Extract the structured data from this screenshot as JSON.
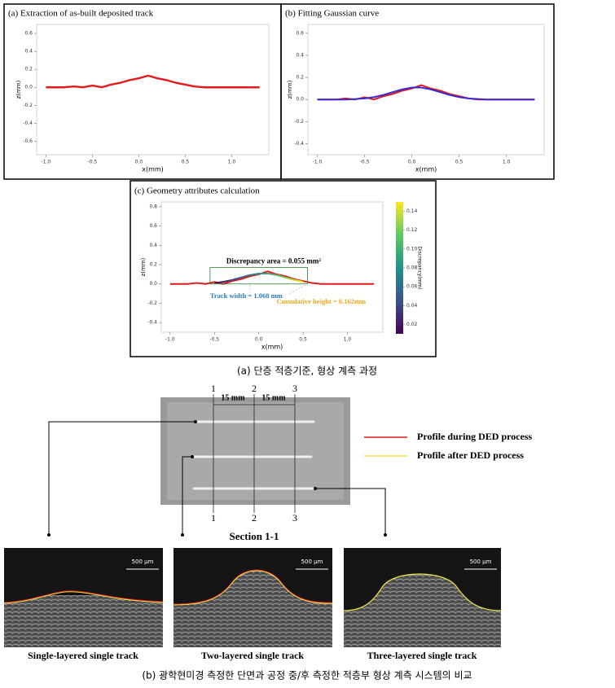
{
  "chart_data": [
    {
      "type": "line",
      "title": "(a) Extraction of as-built deposited track",
      "xlabel": "x(mm)",
      "ylabel": "z(mm)",
      "x": [
        -1.0,
        -0.9,
        -0.8,
        -0.7,
        -0.6,
        -0.5,
        -0.4,
        -0.3,
        -0.2,
        -0.1,
        0.0,
        0.1,
        0.2,
        0.3,
        0.4,
        0.5,
        0.6,
        0.7,
        0.8,
        0.9,
        1.0,
        1.1,
        1.2,
        1.3
      ],
      "series": [
        {
          "color": "#e31a1c",
          "values": [
            0,
            0,
            0,
            0.01,
            0,
            0.02,
            0,
            0.03,
            0.05,
            0.08,
            0.1,
            0.13,
            0.1,
            0.08,
            0.05,
            0.03,
            0.01,
            0,
            0,
            0,
            0,
            0,
            0,
            0
          ]
        }
      ],
      "xlim": [
        -1.1,
        1.4
      ],
      "ylim": [
        -0.75,
        0.7
      ],
      "xticks": [
        {
          "value": -1.0,
          "label": "-1.0"
        },
        -0.5,
        {
          "value": 0,
          "label": "0.0"
        },
        0.5,
        {
          "value": 1.0,
          "label": "1.0"
        }
      ],
      "yticks": [
        -0.6,
        -0.4,
        -0.2,
        {
          "value": 0,
          "label": "0.0"
        },
        0.2,
        0.4,
        0.6
      ]
    },
    {
      "type": "line",
      "title": "(b) Fitting Gaussian curve",
      "xlabel": "x(mm)",
      "ylabel": "z(mm)",
      "x": [
        -1.0,
        -0.9,
        -0.8,
        -0.7,
        -0.6,
        -0.5,
        -0.4,
        -0.3,
        -0.2,
        -0.1,
        0.0,
        0.1,
        0.2,
        0.3,
        0.4,
        0.5,
        0.6,
        0.7,
        0.8,
        0.9,
        1.0,
        1.1,
        1.2,
        1.3
      ],
      "series": [
        {
          "color": "#e31a1c",
          "values": [
            0,
            0,
            0,
            0.01,
            0,
            0.02,
            0,
            0.03,
            0.05,
            0.08,
            0.1,
            0.13,
            0.1,
            0.08,
            0.05,
            0.03,
            0.01,
            0,
            0,
            0,
            0,
            0,
            0,
            0
          ]
        },
        {
          "color": "#3a2ad0",
          "values": [
            0,
            0,
            0,
            0,
            0.004,
            0.01,
            0.022,
            0.041,
            0.067,
            0.092,
            0.108,
            0.108,
            0.092,
            0.067,
            0.041,
            0.022,
            0.01,
            0.004,
            0,
            0,
            0,
            0,
            0,
            0
          ]
        }
      ],
      "xlim": [
        -1.1,
        1.4
      ],
      "ylim": [
        -0.5,
        0.68
      ],
      "xticks": [
        {
          "value": -1.0,
          "label": "-1.0"
        },
        -0.5,
        {
          "value": 0,
          "label": "0.0"
        },
        0.5,
        {
          "value": 1.0,
          "label": "1.0"
        }
      ],
      "yticks": [
        -0.4,
        -0.2,
        {
          "value": 0,
          "label": "0.0"
        },
        0.2,
        0.4,
        0.6
      ]
    },
    {
      "type": "line",
      "title": "(c) Geometry attributes calculation",
      "xlabel": "x(mm)",
      "ylabel": "z(mm)",
      "x": [
        -1.0,
        -0.9,
        -0.8,
        -0.7,
        -0.6,
        -0.5,
        -0.4,
        -0.3,
        -0.2,
        -0.1,
        0.0,
        0.1,
        0.2,
        0.3,
        0.4,
        0.5,
        0.6,
        0.7,
        0.8,
        0.9,
        1.0,
        1.1,
        1.2,
        1.3
      ],
      "series": [
        {
          "color": "#e31a1c",
          "values": [
            0,
            0,
            0,
            0.01,
            0,
            0.02,
            0,
            0.03,
            0.05,
            0.08,
            0.1,
            0.13,
            0.1,
            0.08,
            0.05,
            0.03,
            0.01,
            0,
            0,
            0,
            0,
            0,
            0,
            0
          ]
        },
        {
          "colormap": "viridis",
          "values": [
            null,
            null,
            null,
            null,
            null,
            0.01,
            0.022,
            0.041,
            0.067,
            0.092,
            0.108,
            0.108,
            0.092,
            0.067,
            0.041,
            0.022,
            null,
            null,
            null,
            null,
            null,
            null,
            null,
            null
          ]
        }
      ],
      "xlim": [
        -1.1,
        1.4
      ],
      "ylim": [
        -0.5,
        0.85
      ],
      "xticks": [
        {
          "value": -1.0,
          "label": "-1.0"
        },
        -0.5,
        {
          "value": 0,
          "label": "0.0"
        },
        0.5,
        {
          "value": 1.0,
          "label": "1.0"
        }
      ],
      "yticks": [
        -0.4,
        -0.2,
        {
          "value": 0,
          "label": "0.0"
        },
        0.2,
        0.4,
        0.6,
        0.8
      ],
      "annotations": {
        "area": "Discrepancy  area = 0.055 mm²",
        "width": "Track width = 1.068 mm",
        "height": "Cumulative height = 0.162mm"
      },
      "colorbar": {
        "label": "Discrepancy(mm)",
        "colormap": "viridis",
        "lim": [
          0.01,
          0.15
        ],
        "ticks": [
          0.02,
          0.04,
          0.06,
          0.08,
          {
            "value": 0.1,
            "label": "0.10"
          },
          0.12,
          0.14
        ]
      }
    }
  ],
  "figure_a_caption": "(a) 단층 적층기준, 형상 계측 과정",
  "photo": {
    "top_labels": [
      "1",
      "2",
      "3"
    ],
    "spacing_labels": [
      "15 mm",
      "15 mm"
    ],
    "bottom_labels": [
      "1",
      "2",
      "3"
    ],
    "section_label": "Section 1-1",
    "legend": [
      {
        "name": "Profile during DED process",
        "color": "#e31a1c"
      },
      {
        "name": "Profile after DED process",
        "color": "#f2e34a"
      }
    ]
  },
  "micrographs": [
    {
      "scale": "500 μm",
      "caption": "Single-layered single track"
    },
    {
      "scale": "500 μm",
      "caption": "Two-layered single track"
    },
    {
      "scale": "500 μm",
      "caption": "Three-layered single track"
    }
  ],
  "figure_b_caption": "(b) 광학현미경 측정한 단면과 공정 중/후 측정한 적층부 형상 계측 시스템의 비교"
}
